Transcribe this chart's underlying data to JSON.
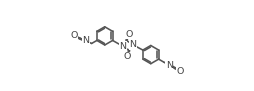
{
  "figsize": [
    2.55,
    0.91
  ],
  "dpi": 100,
  "bg": "#ffffff",
  "lc": "#555555",
  "lw": 1.15,
  "fs": 6.8,
  "fc": "#444444",
  "xlim": [
    -0.05,
    1.05
  ],
  "ylim": [
    0.05,
    0.95
  ]
}
